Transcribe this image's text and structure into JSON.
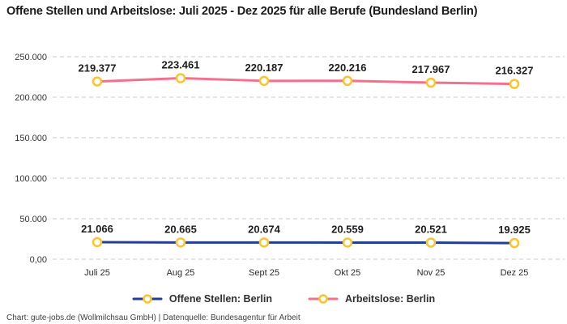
{
  "title": "Offene Stellen und Arbeitslose: Juli 2025 - Dez 2025 für alle Berufe (Bundesland Berlin)",
  "footer": "Chart: gute-jobs.de (Wollmilchsau GmbH) | Datenquelle: Bundesagentur für Arbeit",
  "colors": {
    "offene_stellen": "#243e96",
    "arbeitslose": "#f4708d",
    "marker": "#fcc32c",
    "grid": "#c9c9c9",
    "data_label": "#1d1d1f"
  },
  "chart_data": {
    "type": "line",
    "categories": [
      "Juli 25",
      "Aug 25",
      "Sept 25",
      "Okt 25",
      "Nov 25",
      "Dez 25"
    ],
    "series": [
      {
        "name": "Offene Stellen: Berlin",
        "values": [
          21066,
          20665,
          20674,
          20559,
          20521,
          19925
        ],
        "labels": [
          "21.066",
          "20.665",
          "20.674",
          "20.559",
          "20.521",
          "19.925"
        ],
        "color_key": "offene_stellen"
      },
      {
        "name": "Arbeitslose: Berlin",
        "values": [
          219377,
          223461,
          220187,
          220216,
          217967,
          216327
        ],
        "labels": [
          "219.377",
          "223.461",
          "220.187",
          "220.216",
          "217.967",
          "216.327"
        ],
        "color_key": "arbeitslose"
      }
    ],
    "xlabel": "",
    "ylabel": "",
    "ylim": [
      0,
      250000
    ],
    "ytick_labels": [
      "0,00",
      "50.000",
      "100.000",
      "150.000",
      "200.000",
      "250.000"
    ],
    "grid": "horizontal-dashed",
    "legend_position": "bottom",
    "marker_style": "ring"
  }
}
